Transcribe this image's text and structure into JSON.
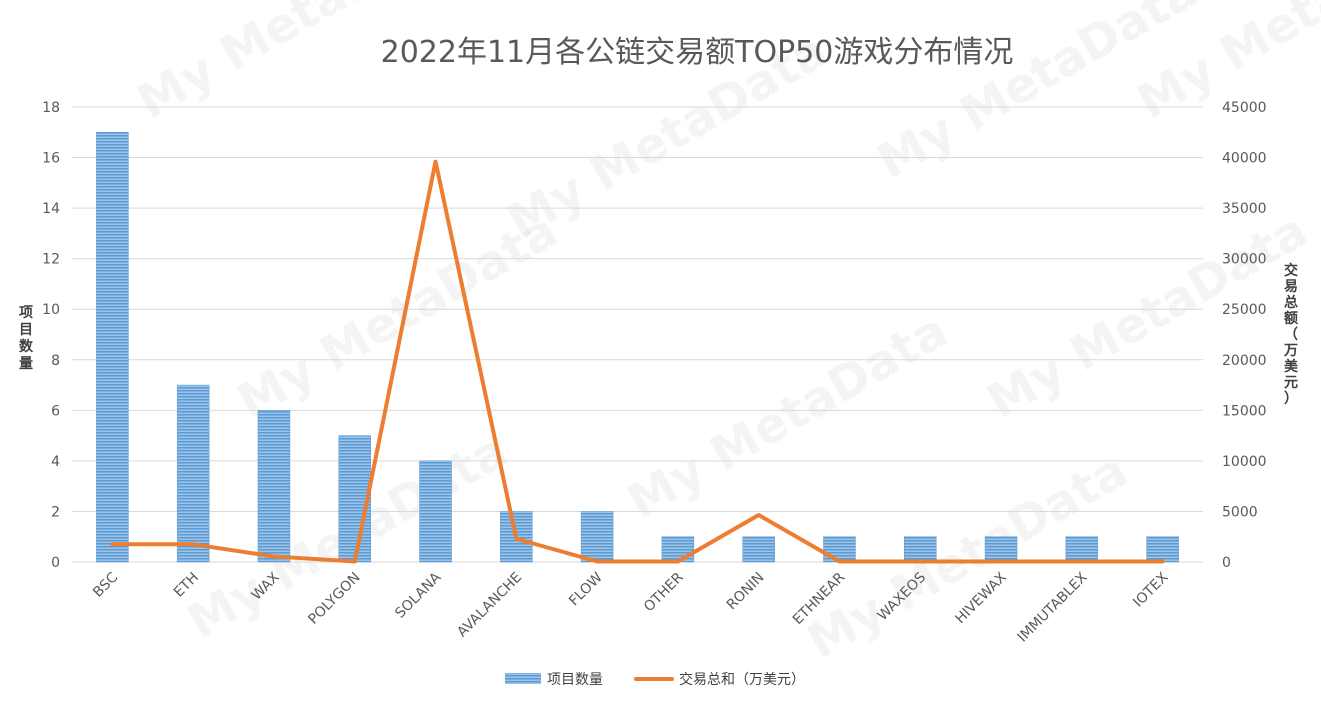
{
  "chart_data": {
    "type": "bar",
    "title": "2022年11月各公链交易额TOP50游戏分布情况",
    "categories": [
      "BSC",
      "ETH",
      "WAX",
      "POLYGON",
      "SOLANA",
      "AVALANCHE",
      "FLOW",
      "OTHER",
      "RONIN",
      "ETHNEAR",
      "WAXEOS",
      "HIVEWAX",
      "IMMUTABLEX",
      "IOTEX"
    ],
    "series": [
      {
        "name": "项目数量",
        "kind": "bar",
        "axis": "left",
        "color": "#5b9bd5",
        "values": [
          17,
          7,
          6,
          5,
          4,
          2,
          2,
          1,
          1,
          1,
          1,
          1,
          1,
          1
        ]
      },
      {
        "name": "交易总和（万美元）",
        "kind": "line",
        "axis": "right",
        "color": "#ed7d31",
        "values": [
          1750,
          1750,
          550,
          50,
          39600,
          2300,
          50,
          50,
          4650,
          50,
          50,
          50,
          50,
          50
        ]
      }
    ],
    "ylabel_left": "项目数量",
    "ylabel_right": "交易总额（万美元）",
    "ylim_left": [
      0,
      18
    ],
    "ylim_right": [
      0,
      45000
    ],
    "left_ticks": [
      "0",
      "2",
      "4",
      "6",
      "8",
      "10",
      "12",
      "14",
      "16",
      "18"
    ],
    "right_ticks": [
      "0",
      "5000",
      "10000",
      "15000",
      "20000",
      "25000",
      "30000",
      "35000",
      "40000",
      "45000"
    ],
    "grid": true,
    "legend": "bottom"
  },
  "watermark_text": "My MetaData"
}
